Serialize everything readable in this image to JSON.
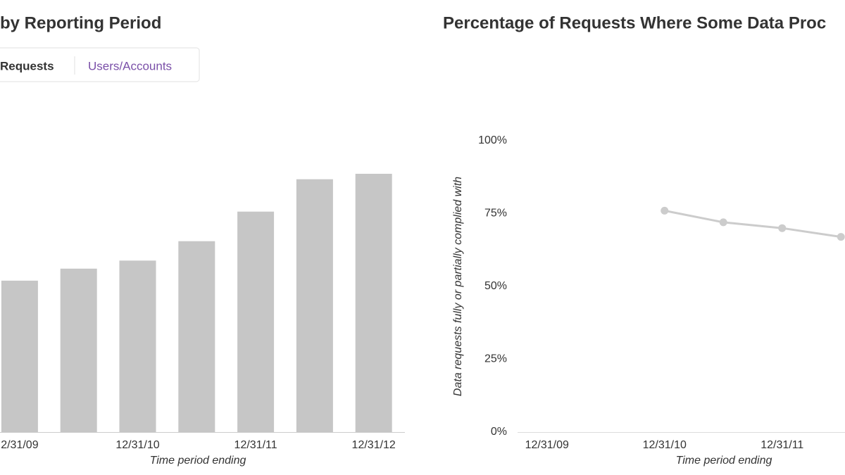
{
  "tabs": [
    "Requests",
    "Users/Accounts"
  ],
  "chart_data": [
    {
      "type": "bar",
      "title": "by Reporting Period",
      "categories": [
        "2/31/09",
        null,
        "12/31/10",
        null,
        "12/31/11",
        null,
        "12/31/12"
      ],
      "values": [
        12539,
        13534,
        14201,
        15807,
        18257,
        20938,
        21389
      ],
      "color": "#c6c6c6",
      "ylim": [
        0,
        25000
      ],
      "xlabel": "Time period ending"
    },
    {
      "type": "line",
      "title": "Percentage of Requests Where Some Data Proc",
      "categories": [
        "12/31/09",
        null,
        "12/31/10",
        null,
        "12/31/11",
        null
      ],
      "series": [
        {
          "color": "#cccccc",
          "values": [
            null,
            null,
            76,
            72,
            70,
            67
          ]
        }
      ],
      "ylim": [
        0,
        100
      ],
      "yticks": [
        {
          "value": 0,
          "label": "0%"
        },
        {
          "value": 25,
          "label": "25%"
        },
        {
          "value": 50,
          "label": "50%"
        },
        {
          "value": 75,
          "label": "75%"
        },
        {
          "value": 100,
          "label": "100%"
        }
      ],
      "xlabel": "Time period ending",
      "ylabel": "Data requests fully or partially complied with"
    }
  ]
}
